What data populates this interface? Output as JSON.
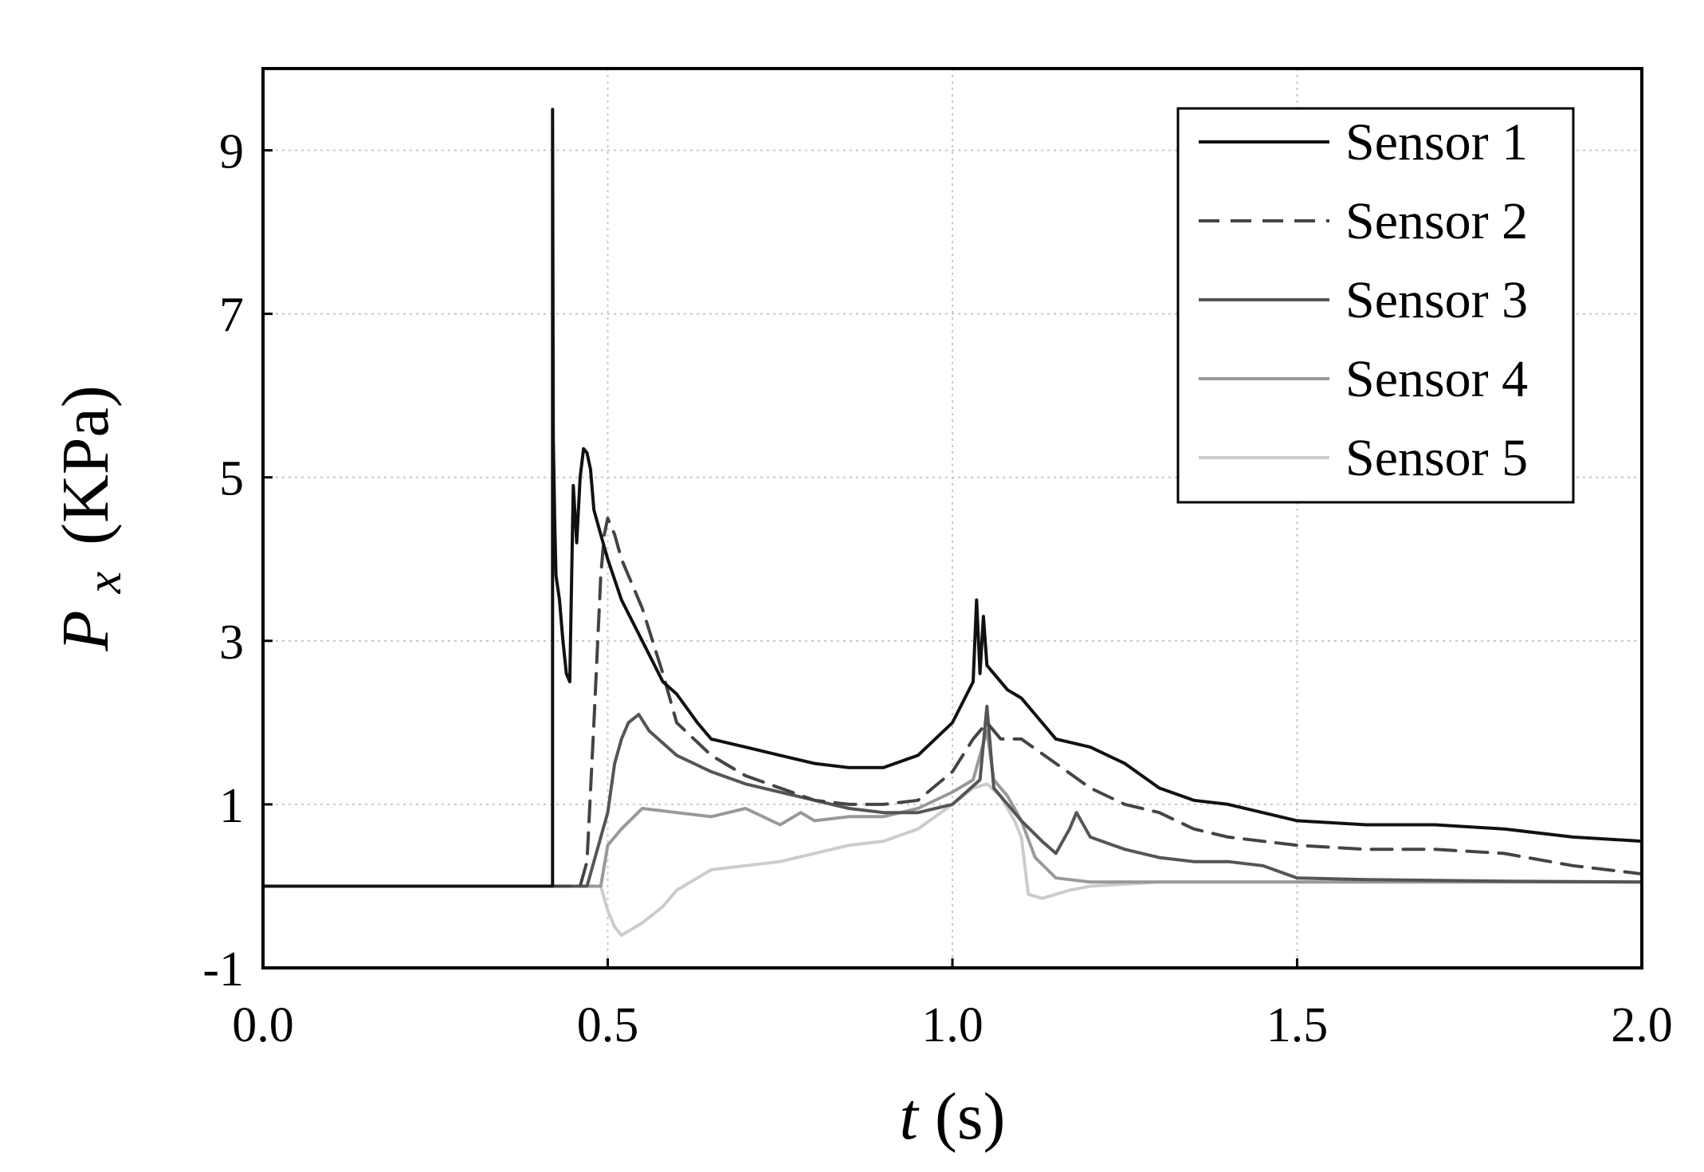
{
  "chart_data": {
    "type": "line",
    "xlabel": {
      "var": "t",
      "unit": "(s)"
    },
    "ylabel": {
      "var": "P",
      "sub": "x",
      "unit": "(KPa)"
    },
    "xlim": [
      0.0,
      2.0
    ],
    "ylim": [
      -1,
      10
    ],
    "xticks": [
      "0.0",
      "0.5",
      "1.0",
      "1.5",
      "2.0"
    ],
    "yticks": [
      "-1",
      "1",
      "3",
      "5",
      "7",
      "9"
    ],
    "grid": true,
    "legend_position": "top-right",
    "series": [
      {
        "name": "Sensor 1",
        "color": "#111111",
        "dash": "solid",
        "x": [
          0.0,
          0.42,
          0.42,
          0.421,
          0.423,
          0.425,
          0.43,
          0.435,
          0.44,
          0.445,
          0.45,
          0.455,
          0.46,
          0.465,
          0.47,
          0.475,
          0.48,
          0.49,
          0.5,
          0.52,
          0.55,
          0.58,
          0.6,
          0.63,
          0.65,
          0.7,
          0.75,
          0.8,
          0.85,
          0.9,
          0.95,
          1.0,
          1.03,
          1.035,
          1.04,
          1.045,
          1.05,
          1.06,
          1.08,
          1.1,
          1.15,
          1.2,
          1.25,
          1.3,
          1.35,
          1.4,
          1.45,
          1.5,
          1.6,
          1.7,
          1.8,
          1.9,
          2.0
        ],
        "y": [
          0.0,
          0.0,
          9.5,
          5.5,
          4.5,
          3.8,
          3.5,
          3.0,
          2.6,
          2.5,
          4.9,
          4.2,
          5.0,
          5.35,
          5.3,
          5.1,
          4.6,
          4.3,
          4.0,
          3.5,
          3.0,
          2.5,
          2.35,
          2.0,
          1.8,
          1.7,
          1.6,
          1.5,
          1.45,
          1.45,
          1.6,
          2.0,
          2.5,
          3.5,
          2.6,
          3.3,
          2.7,
          2.6,
          2.4,
          2.3,
          1.8,
          1.7,
          1.5,
          1.2,
          1.05,
          1.0,
          0.9,
          0.8,
          0.75,
          0.75,
          0.7,
          0.6,
          0.55
        ]
      },
      {
        "name": "Sensor 2",
        "color": "#444444",
        "dash": "dashed",
        "x": [
          0.0,
          0.46,
          0.47,
          0.48,
          0.49,
          0.495,
          0.5,
          0.51,
          0.52,
          0.55,
          0.58,
          0.6,
          0.65,
          0.7,
          0.75,
          0.8,
          0.85,
          0.9,
          0.95,
          1.0,
          1.03,
          1.05,
          1.07,
          1.1,
          1.15,
          1.2,
          1.25,
          1.3,
          1.35,
          1.4,
          1.45,
          1.5,
          1.6,
          1.7,
          1.8,
          1.9,
          2.0
        ],
        "y": [
          0.0,
          0.0,
          0.3,
          2.0,
          3.8,
          4.3,
          4.5,
          4.3,
          4.0,
          3.4,
          2.6,
          2.0,
          1.6,
          1.35,
          1.2,
          1.05,
          1.0,
          1.0,
          1.05,
          1.4,
          1.8,
          2.0,
          1.8,
          1.8,
          1.5,
          1.2,
          1.0,
          0.9,
          0.7,
          0.6,
          0.55,
          0.5,
          0.45,
          0.45,
          0.4,
          0.25,
          0.15
        ]
      },
      {
        "name": "Sensor 3",
        "color": "#555555",
        "dash": "solid",
        "x": [
          0.0,
          0.47,
          0.48,
          0.5,
          0.51,
          0.52,
          0.53,
          0.545,
          0.56,
          0.6,
          0.65,
          0.7,
          0.75,
          0.8,
          0.85,
          0.9,
          0.95,
          1.0,
          1.04,
          1.05,
          1.06,
          1.1,
          1.13,
          1.15,
          1.17,
          1.18,
          1.2,
          1.25,
          1.3,
          1.35,
          1.4,
          1.45,
          1.5,
          1.6,
          1.7,
          1.8,
          2.0
        ],
        "y": [
          0.0,
          0.0,
          0.3,
          0.9,
          1.5,
          1.8,
          2.0,
          2.1,
          1.9,
          1.6,
          1.4,
          1.25,
          1.15,
          1.05,
          0.95,
          0.9,
          0.9,
          1.0,
          1.3,
          2.2,
          1.2,
          0.8,
          0.55,
          0.4,
          0.7,
          0.9,
          0.6,
          0.45,
          0.35,
          0.3,
          0.3,
          0.25,
          0.1,
          0.08,
          0.07,
          0.06,
          0.05
        ]
      },
      {
        "name": "Sensor 4",
        "color": "#999999",
        "dash": "solid",
        "x": [
          0.0,
          0.49,
          0.5,
          0.52,
          0.55,
          0.6,
          0.65,
          0.7,
          0.75,
          0.78,
          0.8,
          0.85,
          0.9,
          0.95,
          1.0,
          1.03,
          1.05,
          1.06,
          1.08,
          1.1,
          1.12,
          1.15,
          1.2,
          1.3,
          1.5,
          2.0
        ],
        "y": [
          0.0,
          0.0,
          0.5,
          0.7,
          0.95,
          0.9,
          0.85,
          0.95,
          0.75,
          0.9,
          0.8,
          0.85,
          0.85,
          0.95,
          1.15,
          1.3,
          1.9,
          1.3,
          1.1,
          0.8,
          0.35,
          0.1,
          0.05,
          0.05,
          0.05,
          0.05
        ]
      },
      {
        "name": "Sensor 5",
        "color": "#cccccc",
        "dash": "solid",
        "x": [
          0.0,
          0.49,
          0.5,
          0.51,
          0.52,
          0.53,
          0.55,
          0.58,
          0.6,
          0.65,
          0.7,
          0.75,
          0.8,
          0.85,
          0.9,
          0.95,
          1.0,
          1.03,
          1.05,
          1.07,
          1.09,
          1.1,
          1.11,
          1.13,
          1.15,
          1.17,
          1.2,
          1.3,
          1.5,
          2.0
        ],
        "y": [
          0.0,
          0.0,
          -0.3,
          -0.5,
          -0.6,
          -0.55,
          -0.45,
          -0.25,
          -0.05,
          0.2,
          0.25,
          0.3,
          0.4,
          0.5,
          0.55,
          0.7,
          1.0,
          1.2,
          1.25,
          1.1,
          0.8,
          0.6,
          -0.1,
          -0.15,
          -0.1,
          -0.05,
          0.0,
          0.05,
          0.05,
          0.05
        ]
      }
    ]
  }
}
